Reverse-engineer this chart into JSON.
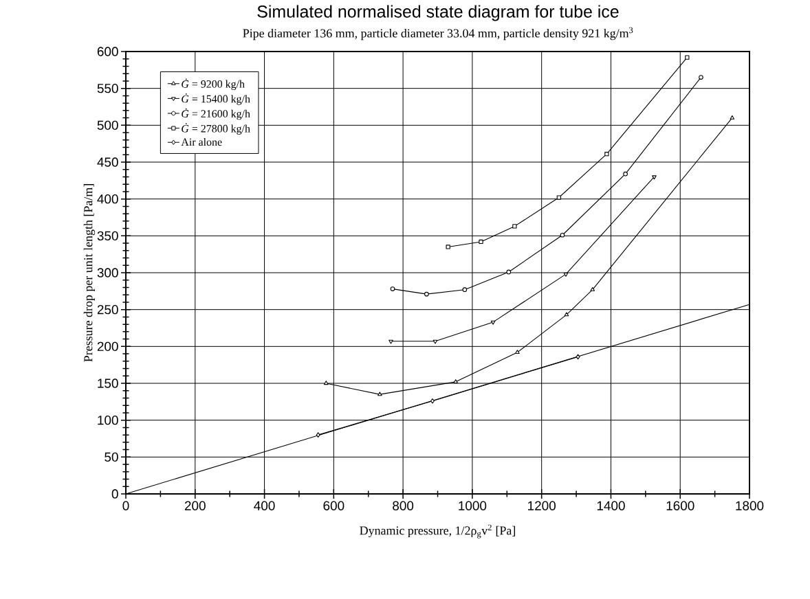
{
  "chart_data": {
    "type": "line",
    "title": "Simulated normalised state diagram for tube ice",
    "subtitle": "Pipe diameter 136 mm, particle diameter 33.04 mm, particle density 921 kg/m$^{3}$",
    "xlabel": "Dynamic pressure, 1/2ρ$_{g}$v$^{2}$ [Pa]",
    "ylabel": "Pressure drop per unit length [Pa/m]",
    "xlim": [
      0,
      1800
    ],
    "xticks": [
      0,
      200,
      400,
      600,
      800,
      1000,
      1200,
      1400,
      1600,
      1800
    ],
    "ylim": [
      0,
      600
    ],
    "yticks": [
      0,
      50,
      100,
      150,
      200,
      250,
      300,
      350,
      400,
      450,
      500,
      550,
      600
    ],
    "grid": true,
    "legend": "top left",
    "line_style": "solid",
    "series": [
      {
        "name": "*Ġ* = 9200 kg/h",
        "color": "#000000",
        "marker": "triangle",
        "x": [
          578,
          733,
          952,
          1130,
          1272,
          1347,
          1750
        ],
        "values": [
          150,
          135,
          152,
          192,
          243,
          277,
          510
        ]
      },
      {
        "name": "*Ġ* = 15400 kg/h",
        "color": "#000000",
        "marker": "triangle-down",
        "x": [
          765,
          893,
          1060,
          1270,
          1525
        ],
        "values": [
          207,
          207,
          233,
          298,
          430
        ]
      },
      {
        "name": "*Ġ* = 21600 kg/h",
        "color": "#000000",
        "marker": "circle",
        "x": [
          770,
          868,
          978,
          1105,
          1260,
          1442,
          1660
        ],
        "values": [
          278,
          271,
          277,
          301,
          351,
          434,
          565
        ]
      },
      {
        "name": "*Ġ* = 27800 kg/h",
        "color": "#000000",
        "marker": "square",
        "x": [
          930,
          1025,
          1122,
          1250,
          1388,
          1620
        ],
        "values": [
          335,
          342,
          363,
          402,
          461,
          592
        ]
      },
      {
        "name": "Air alone",
        "color": "#000000",
        "marker": "diamond",
        "x": [
          555,
          885,
          1305
        ],
        "values": [
          80,
          126,
          186
        ]
      },
      {
        "color": "#000000",
        "x": [
          0,
          1800
        ],
        "values": [
          0,
          257
        ]
      }
    ]
  }
}
